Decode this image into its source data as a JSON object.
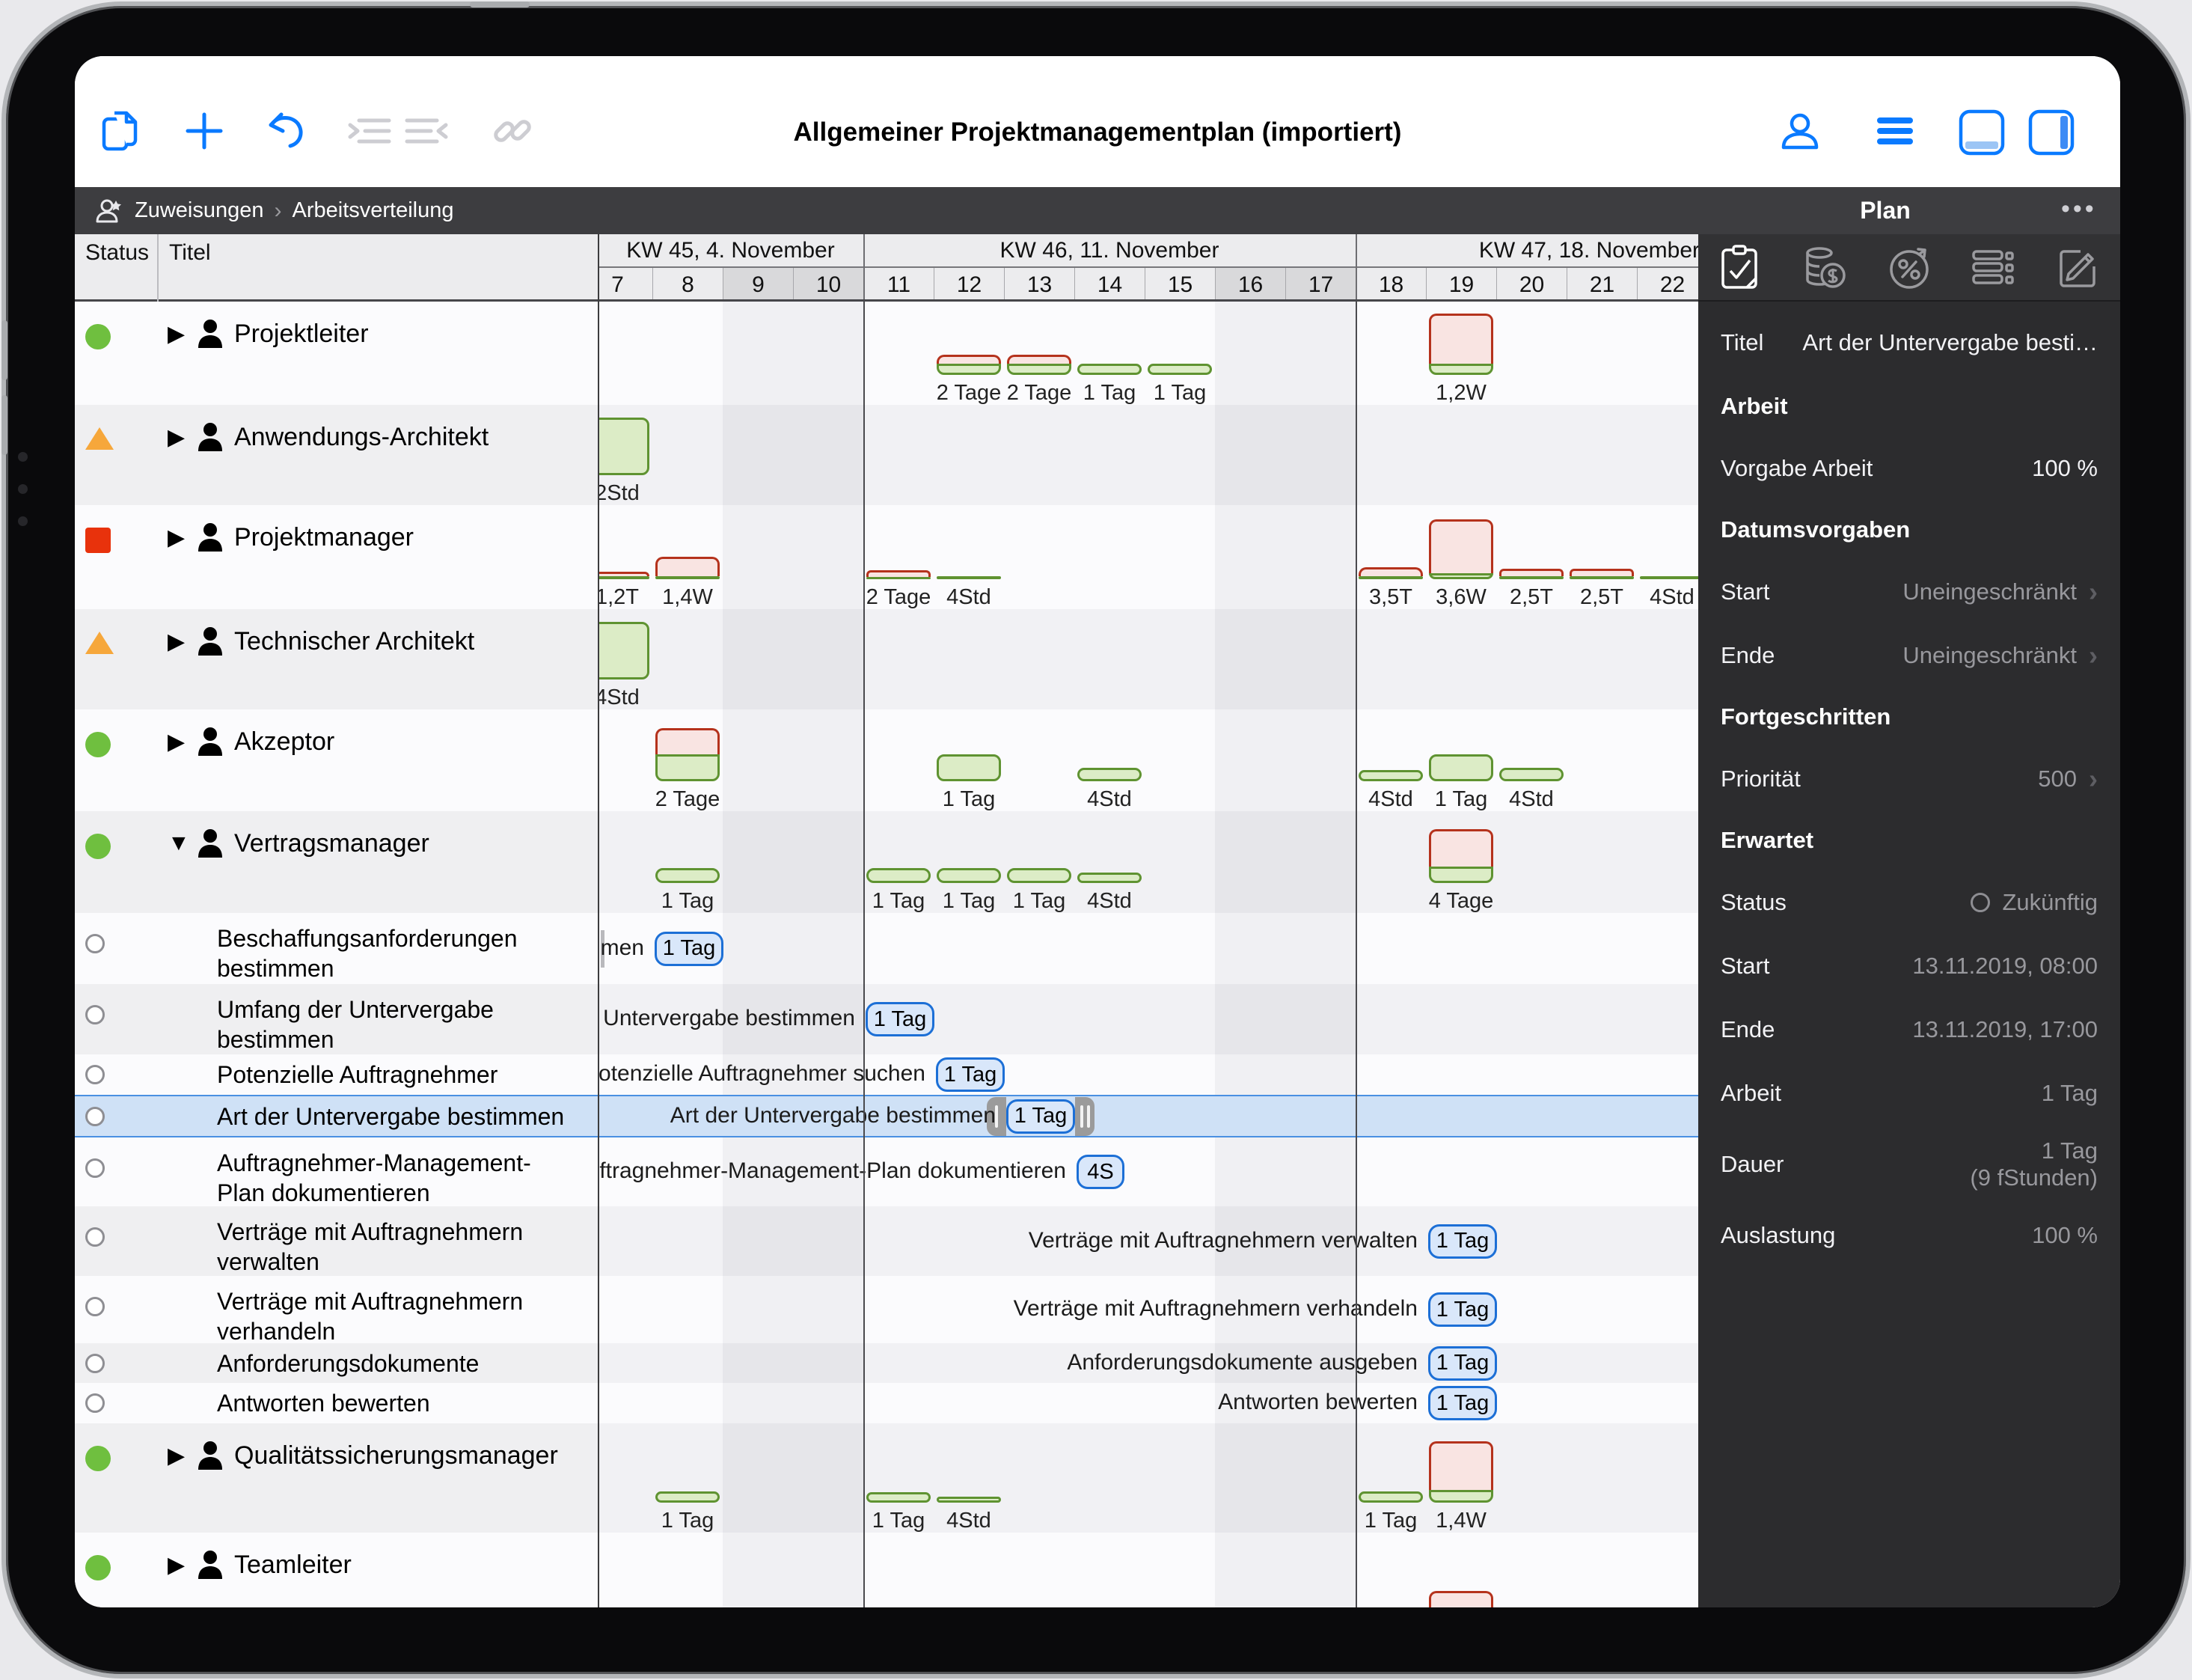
{
  "toolbar": {
    "title": "Allgemeiner Projektmanagementplan (importiert)",
    "icons": [
      "documents-icon",
      "add-icon",
      "undo-icon",
      "indent-icon",
      "outdent-icon",
      "link-icon",
      "contact-icon",
      "menu-icon",
      "bottom-panel-toggle",
      "right-panel-toggle"
    ]
  },
  "breadcrumb": {
    "item1": "Zuweisungen",
    "separator": "›",
    "item2": "Arbeitsverteilung"
  },
  "table": {
    "col_status": "Status",
    "col_title": "Titel"
  },
  "timeline": {
    "weeks": [
      {
        "label": "KW 45, 4. November",
        "days": [
          7,
          8,
          9,
          10
        ]
      },
      {
        "label": "KW 46, 11. November",
        "days": [
          11,
          12,
          13,
          14,
          15,
          16,
          17
        ]
      },
      {
        "label": "KW 47, 18. November",
        "days": [
          18,
          19,
          20,
          21,
          22
        ]
      }
    ],
    "weekend_days": [
      9,
      10,
      16,
      17
    ],
    "first_day": 7
  },
  "rows": [
    {
      "kind": "resource",
      "status": "green-circle",
      "name": "Projektleiter",
      "h": 138,
      "stripe": "w",
      "expanded": false,
      "bars": [
        {
          "day": 12,
          "label": "2 Tage",
          "red": 12,
          "green": 15
        },
        {
          "day": 13,
          "label": "2 Tage",
          "red": 12,
          "green": 15
        },
        {
          "day": 14,
          "label": "1 Tag",
          "red": 0,
          "green": 15
        },
        {
          "day": 15,
          "label": "1 Tag",
          "red": 0,
          "green": 15
        },
        {
          "day": 19,
          "label": "1,2W",
          "red": 67,
          "green": 15
        }
      ]
    },
    {
      "kind": "resource",
      "status": "orange-triangle",
      "name": "Anwendungs-Architekt",
      "h": 134,
      "stripe": "g",
      "expanded": false,
      "bars": [
        {
          "day": 7,
          "label": "2Std",
          "red": 0,
          "green": 77
        }
      ]
    },
    {
      "kind": "resource",
      "status": "red-square",
      "name": "Projektmanager",
      "h": 139,
      "stripe": "w",
      "expanded": false,
      "bars": [
        {
          "day": 7,
          "label": "1,2T",
          "red": 6,
          "green": 4
        },
        {
          "day": 8,
          "label": "1,4W",
          "red": 26,
          "green": 4
        },
        {
          "day": 11,
          "label": "2 Tage",
          "red": 9,
          "green": 3
        },
        {
          "day": 12,
          "label": "4Std",
          "red": 0,
          "green": 4
        },
        {
          "day": 18,
          "label": "3,5T",
          "red": 12,
          "green": 4
        },
        {
          "day": 19,
          "label": "3,6W",
          "red": 72,
          "green": 8
        },
        {
          "day": 20,
          "label": "2,5T",
          "red": 10,
          "green": 4
        },
        {
          "day": 21,
          "label": "2,5T",
          "red": 10,
          "green": 4
        },
        {
          "day": 22,
          "label": "4Std",
          "red": 0,
          "green": 4
        }
      ]
    },
    {
      "kind": "resource",
      "status": "orange-triangle",
      "name": "Technischer Architekt",
      "h": 134,
      "stripe": "g",
      "expanded": false,
      "bars": [
        {
          "day": 7,
          "label": "4Std",
          "red": 0,
          "green": 77
        }
      ]
    },
    {
      "kind": "resource",
      "status": "green-circle",
      "name": "Akzeptor",
      "h": 136,
      "stripe": "w",
      "expanded": false,
      "bars": [
        {
          "day": 8,
          "label": "2 Tage",
          "red": 35,
          "green": 36
        },
        {
          "day": 12,
          "label": "1 Tag",
          "red": 0,
          "green": 36
        },
        {
          "day": 14,
          "label": "4Std",
          "red": 0,
          "green": 18
        },
        {
          "day": 18,
          "label": "4Std",
          "red": 0,
          "green": 15
        },
        {
          "day": 19,
          "label": "1 Tag",
          "red": 0,
          "green": 36
        },
        {
          "day": 20,
          "label": "4Std",
          "red": 0,
          "green": 18
        }
      ]
    },
    {
      "kind": "resource",
      "status": "green-circle",
      "name": "Vertragsmanager",
      "h": 136,
      "stripe": "g",
      "expanded": true,
      "bars": [
        {
          "day": 8,
          "label": "1 Tag",
          "red": 0,
          "green": 20
        },
        {
          "day": 11,
          "label": "1 Tag",
          "red": 0,
          "green": 20
        },
        {
          "day": 12,
          "label": "1 Tag",
          "red": 0,
          "green": 20
        },
        {
          "day": 13,
          "label": "1 Tag",
          "red": 0,
          "green": 20
        },
        {
          "day": 14,
          "label": "4Std",
          "red": 0,
          "green": 14
        },
        {
          "day": 19,
          "label": "4 Tage",
          "red": 50,
          "green": 22
        }
      ]
    },
    {
      "kind": "task",
      "status": "open-circle",
      "name": "Beschaffungsanforderungen bestimmen",
      "h": 95,
      "stripe": "w",
      "badge": {
        "day": 8,
        "label": "1 Tag",
        "w": 92
      },
      "ticks": true
    },
    {
      "kind": "task",
      "status": "open-circle",
      "name": "Umfang der Untervergabe bestimmen",
      "h": 94,
      "stripe": "g",
      "badge": {
        "day": 11,
        "label": "1 Tag",
        "w": 92
      }
    },
    {
      "kind": "task",
      "status": "open-circle",
      "name": "Potenzielle Auftragnehmer suchen",
      "h": 54,
      "stripe": "w",
      "badge": {
        "day": 12,
        "label": "1 Tag",
        "w": 92
      }
    },
    {
      "kind": "task",
      "status": "open-circle",
      "name": "Art der Untervergabe bestimmen",
      "h": 57,
      "stripe": "sel",
      "selected": true,
      "badge": {
        "day": 13,
        "label": "1 Tag",
        "w": 92,
        "handles": true
      }
    },
    {
      "kind": "task",
      "status": "open-circle",
      "name": "Auftragnehmer-Management-Plan dokumentieren",
      "h": 92,
      "stripe": "w",
      "badge": {
        "day": 14,
        "label": "4S",
        "w": 64
      }
    },
    {
      "kind": "task",
      "status": "open-circle",
      "name": "Verträge mit Auftragnehmern verwalten",
      "h": 93,
      "stripe": "g",
      "badge": {
        "day": 19,
        "label": "1 Tag",
        "w": 92
      }
    },
    {
      "kind": "task",
      "status": "open-circle",
      "name": "Verträge mit Auftragnehmern verhandeln",
      "h": 90,
      "stripe": "w",
      "badge": {
        "day": 19,
        "label": "1 Tag",
        "w": 92
      }
    },
    {
      "kind": "task",
      "status": "open-circle",
      "name": "Anforderungsdokumente ausgeben",
      "h": 53,
      "stripe": "g",
      "badge": {
        "day": 19,
        "label": "1 Tag",
        "w": 92
      }
    },
    {
      "kind": "task",
      "status": "open-circle",
      "name": "Antworten bewerten",
      "h": 54,
      "stripe": "w",
      "badge": {
        "day": 19,
        "label": "1 Tag",
        "w": 92
      }
    },
    {
      "kind": "resource",
      "status": "green-circle",
      "name": "Qualitätssicherungsmanager",
      "h": 146,
      "stripe": "g",
      "expanded": false,
      "bars": [
        {
          "day": 8,
          "label": "1 Tag",
          "red": 0,
          "green": 15
        },
        {
          "day": 11,
          "label": "1 Tag",
          "red": 0,
          "green": 14
        },
        {
          "day": 12,
          "label": "4Std",
          "red": 0,
          "green": 8
        },
        {
          "day": 18,
          "label": "1 Tag",
          "red": 0,
          "green": 15
        },
        {
          "day": 19,
          "label": "1,4W",
          "red": 65,
          "green": 17
        }
      ]
    },
    {
      "kind": "resource",
      "status": "green-circle",
      "name": "Teamleiter",
      "h": 100,
      "stripe": "w",
      "expanded": false,
      "baseline_overflow": 110,
      "bars": [
        {
          "day": 12,
          "label": "",
          "red": 0,
          "green": 18
        },
        {
          "day": 19,
          "label": "",
          "red": 75,
          "green": 17
        }
      ]
    }
  ],
  "panel": {
    "title": "Plan",
    "more": "•••",
    "tabs": [
      "clipboard-check-icon",
      "money-icon",
      "percent-icon",
      "list-icon",
      "note-edit-icon"
    ],
    "fields": [
      {
        "type": "field",
        "label": "Titel",
        "value": "Art der Untervergabe besti…",
        "bright": true,
        "h": 90
      },
      {
        "type": "section",
        "label": "Arbeit",
        "h": 80
      },
      {
        "type": "field",
        "label": "Vorgabe Arbeit",
        "value": "100 %",
        "bright": true,
        "h": 85
      },
      {
        "type": "section",
        "label": "Datumsvorgaben",
        "h": 80
      },
      {
        "type": "field",
        "label": "Start",
        "value": "Uneingeschränkt",
        "chevron": true,
        "h": 85
      },
      {
        "type": "field",
        "label": "Ende",
        "value": "Uneingeschränkt",
        "chevron": true,
        "h": 85
      },
      {
        "type": "section",
        "label": "Fortgeschritten",
        "h": 80
      },
      {
        "type": "field",
        "label": "Priorität",
        "value": "500",
        "chevron": true,
        "h": 85
      },
      {
        "type": "section",
        "label": "Erwartet",
        "h": 80
      },
      {
        "type": "field",
        "label": "Status",
        "value": "Zukünftig",
        "circle": true,
        "h": 85
      },
      {
        "type": "field",
        "label": "Start",
        "value": "13.11.2019, 08:00",
        "h": 85
      },
      {
        "type": "field",
        "label": "Ende",
        "value": "13.11.2019, 17:00",
        "h": 85
      },
      {
        "type": "field",
        "label": "Arbeit",
        "value": "1 Tag",
        "h": 85
      },
      {
        "type": "field",
        "label": "Dauer",
        "value": "1 Tag\n(9 fStunden)",
        "h": 105
      },
      {
        "type": "field",
        "label": "Auslastung",
        "value": "100 %",
        "h": 85
      }
    ]
  },
  "colors": {
    "accent_blue": "#0a7aff",
    "bar_green_fill": "#dcecc6",
    "bar_green_border": "#5f9331",
    "bar_red_fill": "#f9e4e2",
    "bar_red_border": "#b5321c",
    "badge_fill": "#d9e7fa",
    "badge_border": "#1c6fd6",
    "selection": "#cfe1f6",
    "status_green": "#6fbf3f",
    "status_orange": "#f6a73b",
    "status_red": "#e8320c",
    "panel_bg": "#2c2c2e",
    "band_bg": "#3d3d40"
  }
}
